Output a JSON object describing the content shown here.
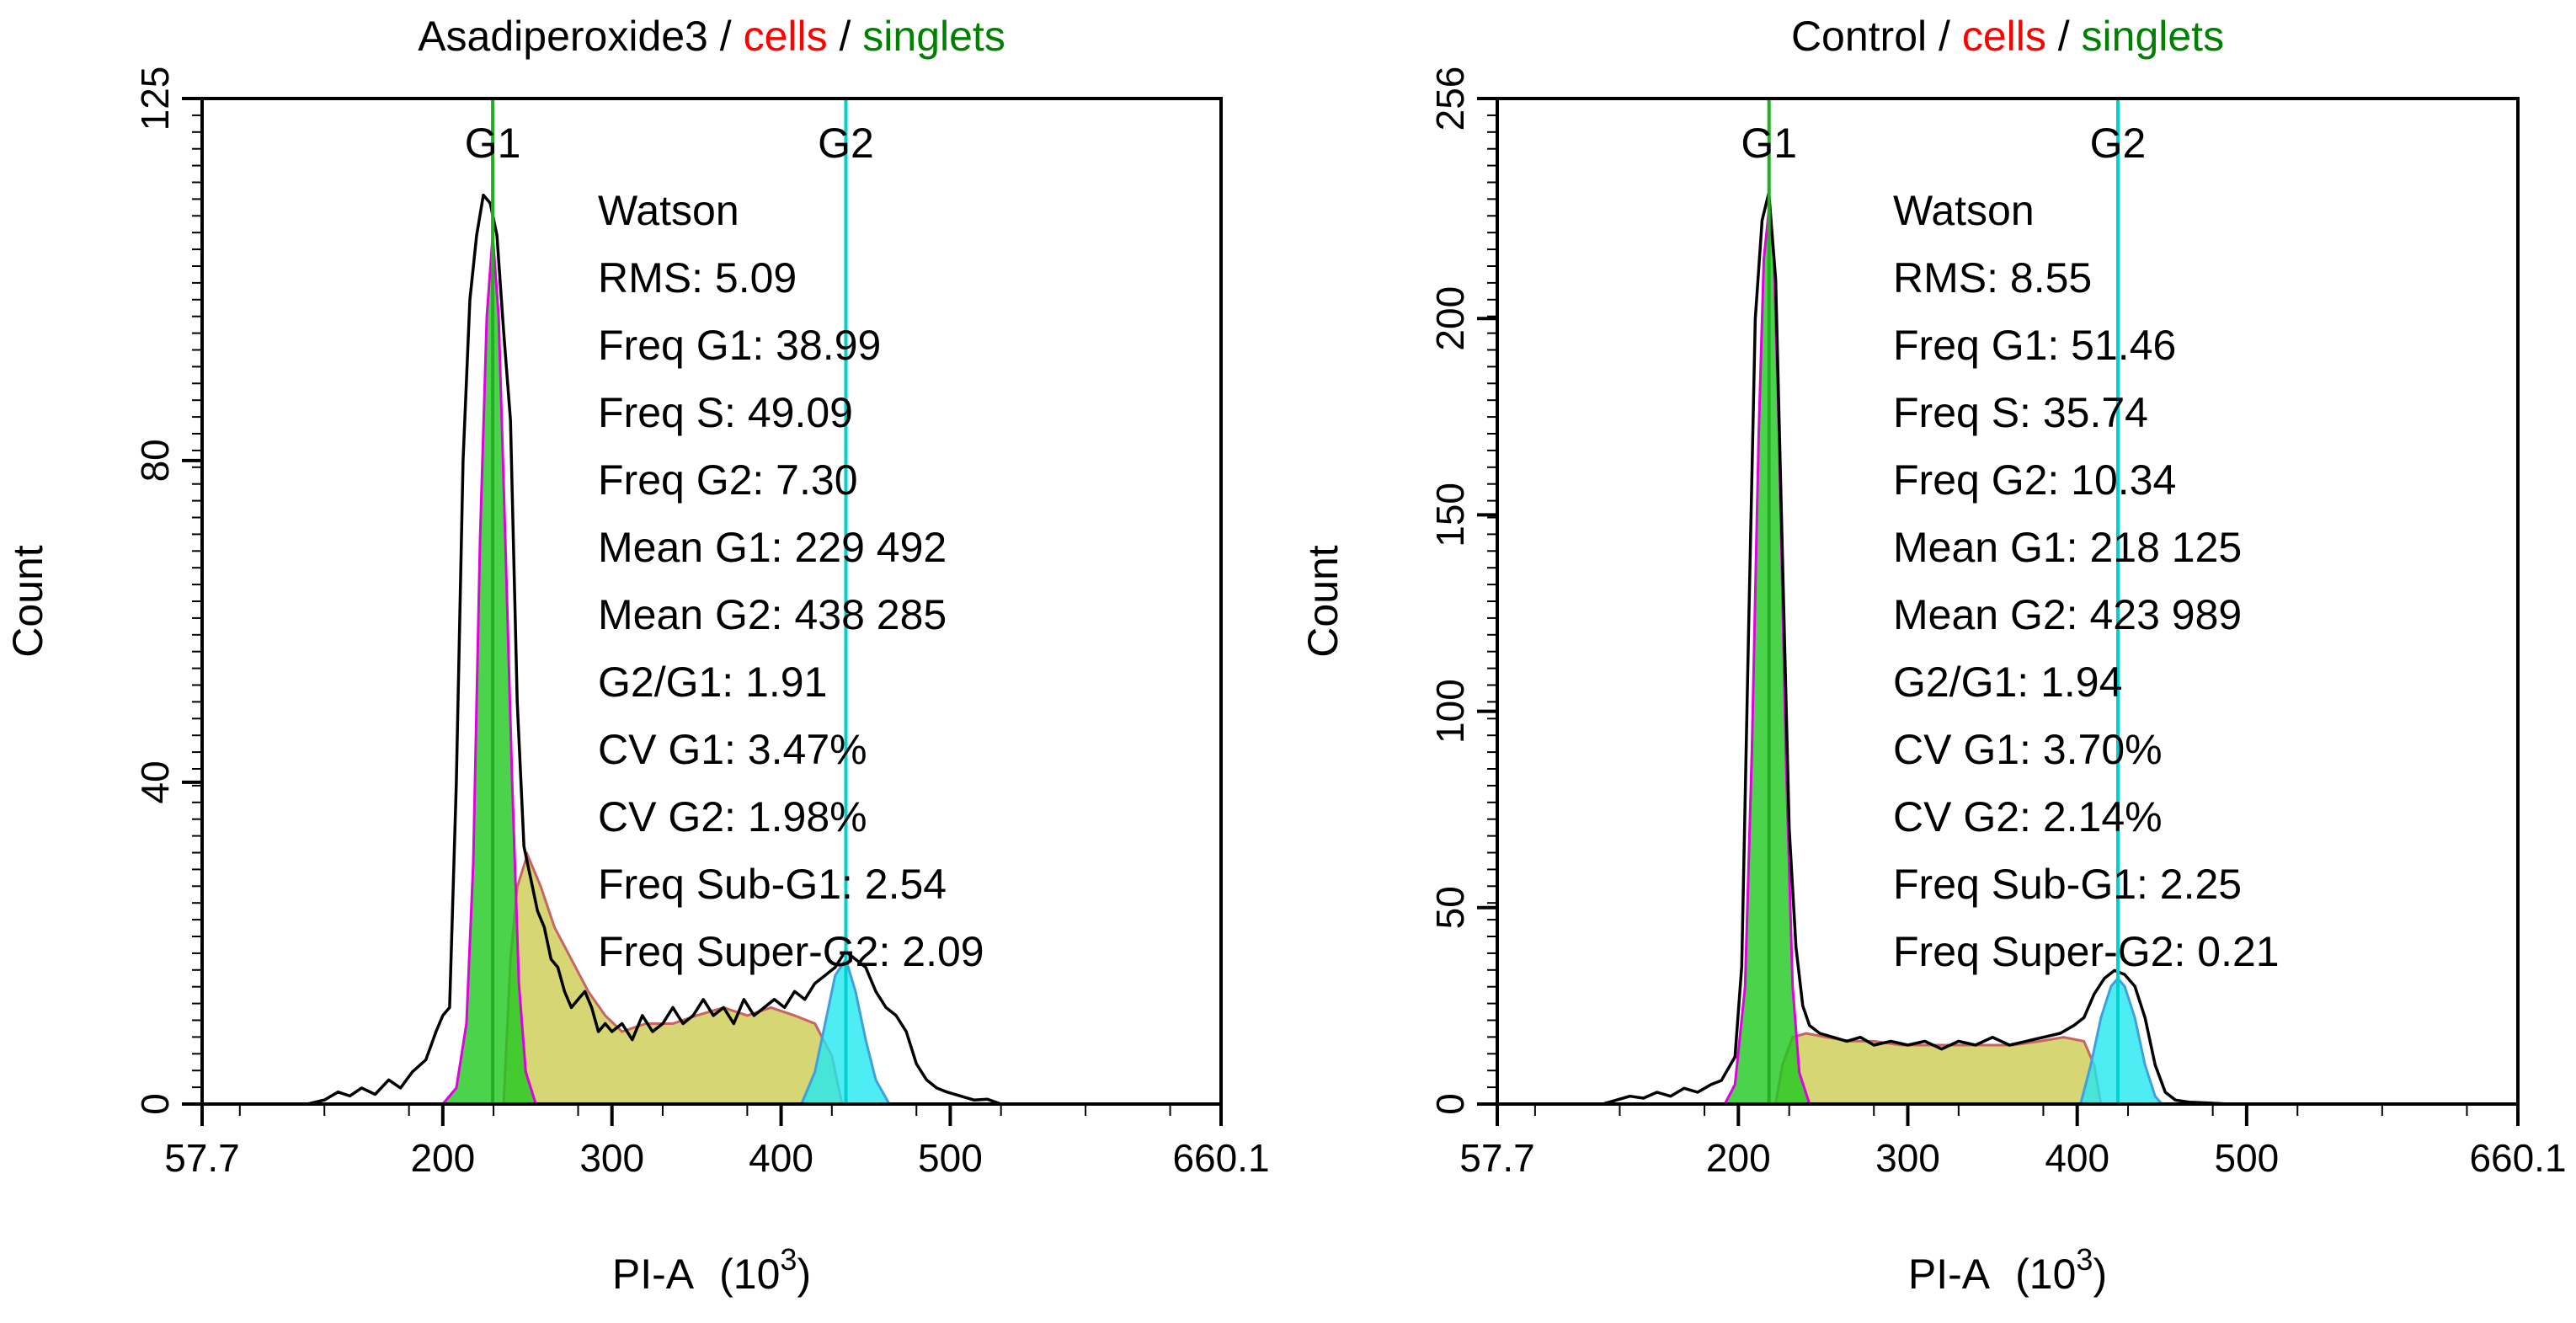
{
  "colors": {
    "black": "#000000",
    "red": "#ff0000",
    "green": "#008000",
    "g1_fill": "#1fc81f",
    "s_fill": "#c8c846",
    "g2_fill": "#22e8f0",
    "g2_dark": "#3fa0e0",
    "fit_line": "#e000e0",
    "s_line": "#c86464",
    "g1_marker": "#22b022",
    "g2_marker": "#00d0d0"
  },
  "chart_data": [
    {
      "type": "histogram",
      "title": {
        "sample": "Asadiperoxide3",
        "sep1": " / ",
        "gate1": "cells",
        "sep2": " / ",
        "gate2": "singlets"
      },
      "xlabel": "PI-A",
      "xunit_prefix": "(10",
      "xunit_exp": "3",
      "xunit_suffix": ")",
      "ylabel": "Count",
      "xlim": [
        57.7,
        660.1
      ],
      "ylim": [
        0,
        125
      ],
      "x_ticks": [
        "57.7",
        "200",
        "300",
        "400",
        "500",
        "660.1"
      ],
      "x_tick_values": [
        57.7,
        200,
        300,
        400,
        500,
        660.1
      ],
      "y_ticks": [
        "0",
        "40",
        "80",
        "125"
      ],
      "y_tick_values": [
        0,
        40,
        80,
        125
      ],
      "markers": [
        {
          "label": "G1",
          "x": 229.5
        },
        {
          "label": "G2",
          "x": 438.3
        }
      ],
      "stats": {
        "header": "Watson",
        "lines": [
          "RMS: 5.09",
          "Freq G1: 38.99",
          "Freq S: 49.09",
          "Freq G2: 7.30",
          "Mean G1: 229 492",
          "Mean G2: 438 285",
          "G2/G1: 1.91",
          "CV G1: 3.47%",
          "CV G2: 1.98%",
          "Freq Sub-G1: 2.54",
          "Freq Super-G2: 2.09"
        ]
      },
      "g1_curve": [
        [
          200,
          0
        ],
        [
          208,
          2
        ],
        [
          214,
          10
        ],
        [
          218,
          30
        ],
        [
          222,
          70
        ],
        [
          226,
          98
        ],
        [
          229.5,
          108
        ],
        [
          233,
          98
        ],
        [
          237,
          70
        ],
        [
          241,
          40
        ],
        [
          245,
          15
        ],
        [
          249,
          4
        ],
        [
          255,
          0
        ]
      ],
      "s_curve": [
        [
          236,
          0
        ],
        [
          240,
          18
        ],
        [
          244,
          27
        ],
        [
          250,
          31
        ],
        [
          258,
          27
        ],
        [
          266,
          22
        ],
        [
          276,
          18
        ],
        [
          286,
          14
        ],
        [
          296,
          11
        ],
        [
          306,
          9
        ],
        [
          320,
          10
        ],
        [
          336,
          10
        ],
        [
          350,
          11
        ],
        [
          366,
          12
        ],
        [
          380,
          11
        ],
        [
          394,
          12
        ],
        [
          408,
          11
        ],
        [
          420,
          10
        ],
        [
          430,
          6
        ],
        [
          436,
          0
        ]
      ],
      "g2_curve": [
        [
          412,
          0
        ],
        [
          420,
          4
        ],
        [
          426,
          10
        ],
        [
          432,
          16
        ],
        [
          438.3,
          18
        ],
        [
          444,
          14
        ],
        [
          450,
          8
        ],
        [
          456,
          3
        ],
        [
          464,
          0
        ]
      ],
      "raw": [
        [
          120,
          0
        ],
        [
          130,
          0.5
        ],
        [
          138,
          1.5
        ],
        [
          145,
          1
        ],
        [
          152,
          2
        ],
        [
          160,
          1.2
        ],
        [
          168,
          3
        ],
        [
          175,
          2
        ],
        [
          182,
          4
        ],
        [
          190,
          5.5
        ],
        [
          196,
          9
        ],
        [
          200,
          11
        ],
        [
          204,
          12
        ],
        [
          208,
          40
        ],
        [
          212,
          80
        ],
        [
          216,
          100
        ],
        [
          220,
          108
        ],
        [
          224,
          113
        ],
        [
          228,
          112
        ],
        [
          232,
          108
        ],
        [
          236,
          96
        ],
        [
          240,
          85
        ],
        [
          244,
          50
        ],
        [
          248,
          32
        ],
        [
          252,
          28
        ],
        [
          256,
          24
        ],
        [
          260,
          22
        ],
        [
          264,
          18
        ],
        [
          268,
          17
        ],
        [
          272,
          14
        ],
        [
          276,
          12
        ],
        [
          280,
          13
        ],
        [
          284,
          14
        ],
        [
          288,
          12
        ],
        [
          292,
          9
        ],
        [
          296,
          10
        ],
        [
          300,
          9
        ],
        [
          306,
          10
        ],
        [
          312,
          8
        ],
        [
          318,
          11
        ],
        [
          324,
          9
        ],
        [
          330,
          10
        ],
        [
          336,
          12
        ],
        [
          342,
          10
        ],
        [
          348,
          11
        ],
        [
          354,
          13
        ],
        [
          360,
          11
        ],
        [
          366,
          12
        ],
        [
          372,
          10
        ],
        [
          378,
          13
        ],
        [
          384,
          11
        ],
        [
          390,
          12
        ],
        [
          396,
          13
        ],
        [
          402,
          12
        ],
        [
          408,
          14
        ],
        [
          414,
          13
        ],
        [
          420,
          15
        ],
        [
          426,
          16
        ],
        [
          432,
          17
        ],
        [
          438,
          19
        ],
        [
          444,
          18
        ],
        [
          450,
          17
        ],
        [
          456,
          14
        ],
        [
          462,
          12
        ],
        [
          468,
          11
        ],
        [
          474,
          9
        ],
        [
          480,
          5
        ],
        [
          486,
          3
        ],
        [
          492,
          2
        ],
        [
          498,
          1.5
        ],
        [
          506,
          1
        ],
        [
          514,
          0.5
        ],
        [
          522,
          0.6
        ],
        [
          530,
          0
        ]
      ]
    },
    {
      "type": "histogram",
      "title": {
        "sample": "Control",
        "sep1": " / ",
        "gate1": "cells",
        "sep2": " / ",
        "gate2": "singlets"
      },
      "xlabel": "PI-A",
      "xunit_prefix": "(10",
      "xunit_exp": "3",
      "xunit_suffix": ")",
      "ylabel": "Count",
      "xlim": [
        57.7,
        660.1
      ],
      "ylim": [
        0,
        256
      ],
      "x_ticks": [
        "57.7",
        "200",
        "300",
        "400",
        "500",
        "660.1"
      ],
      "x_tick_values": [
        57.7,
        200,
        300,
        400,
        500,
        660.1
      ],
      "y_ticks": [
        "0",
        "50",
        "100",
        "150",
        "200",
        "256"
      ],
      "y_tick_values": [
        0,
        50,
        100,
        150,
        200,
        256
      ],
      "markers": [
        {
          "label": "G1",
          "x": 218.1
        },
        {
          "label": "G2",
          "x": 424.0
        }
      ],
      "stats": {
        "header": "Watson",
        "lines": [
          "RMS: 8.55",
          "Freq G1: 51.46",
          "Freq S: 35.74",
          "Freq G2: 10.34",
          "Mean G1: 218 125",
          "Mean G2: 423 989",
          "G2/G1: 1.94",
          "CV G1: 3.70%",
          "CV G2: 2.14%",
          "Freq Sub-G1: 2.25",
          "Freq Super-G2: 0.21"
        ]
      },
      "g1_curve": [
        [
          192,
          0
        ],
        [
          198,
          5
        ],
        [
          204,
          30
        ],
        [
          208,
          90
        ],
        [
          212,
          170
        ],
        [
          215,
          215
        ],
        [
          218.1,
          228
        ],
        [
          221,
          215
        ],
        [
          224,
          170
        ],
        [
          228,
          90
        ],
        [
          232,
          30
        ],
        [
          236,
          8
        ],
        [
          242,
          0
        ]
      ],
      "s_curve": [
        [
          222,
          0
        ],
        [
          226,
          10
        ],
        [
          232,
          17
        ],
        [
          240,
          18
        ],
        [
          252,
          17
        ],
        [
          266,
          16
        ],
        [
          280,
          16
        ],
        [
          296,
          15
        ],
        [
          312,
          15
        ],
        [
          330,
          15
        ],
        [
          346,
          15
        ],
        [
          362,
          15
        ],
        [
          378,
          16
        ],
        [
          392,
          17
        ],
        [
          404,
          16
        ],
        [
          410,
          10
        ],
        [
          414,
          0
        ]
      ],
      "g2_curve": [
        [
          402,
          0
        ],
        [
          408,
          10
        ],
        [
          414,
          22
        ],
        [
          420,
          30
        ],
        [
          424,
          32
        ],
        [
          428,
          30
        ],
        [
          434,
          22
        ],
        [
          440,
          10
        ],
        [
          446,
          2
        ],
        [
          450,
          0
        ]
      ],
      "raw": [
        [
          120,
          0
        ],
        [
          128,
          1
        ],
        [
          136,
          2
        ],
        [
          144,
          1.5
        ],
        [
          152,
          3
        ],
        [
          160,
          2
        ],
        [
          168,
          4
        ],
        [
          176,
          3
        ],
        [
          184,
          5
        ],
        [
          190,
          6
        ],
        [
          194,
          9
        ],
        [
          198,
          12
        ],
        [
          202,
          35
        ],
        [
          206,
          120
        ],
        [
          210,
          200
        ],
        [
          214,
          225
        ],
        [
          218,
          232
        ],
        [
          222,
          210
        ],
        [
          226,
          140
        ],
        [
          230,
          70
        ],
        [
          234,
          40
        ],
        [
          238,
          25
        ],
        [
          242,
          20
        ],
        [
          248,
          18
        ],
        [
          256,
          17
        ],
        [
          264,
          16
        ],
        [
          272,
          17
        ],
        [
          280,
          15
        ],
        [
          290,
          16
        ],
        [
          300,
          15
        ],
        [
          310,
          16
        ],
        [
          320,
          14
        ],
        [
          330,
          16
        ],
        [
          340,
          15
        ],
        [
          350,
          17
        ],
        [
          360,
          15
        ],
        [
          370,
          16
        ],
        [
          380,
          17
        ],
        [
          390,
          18
        ],
        [
          398,
          20
        ],
        [
          404,
          22
        ],
        [
          410,
          28
        ],
        [
          416,
          32
        ],
        [
          422,
          34
        ],
        [
          428,
          33
        ],
        [
          434,
          30
        ],
        [
          440,
          22
        ],
        [
          446,
          10
        ],
        [
          452,
          3
        ],
        [
          458,
          1
        ],
        [
          466,
          0.5
        ],
        [
          476,
          0.3
        ],
        [
          490,
          0
        ]
      ]
    }
  ]
}
